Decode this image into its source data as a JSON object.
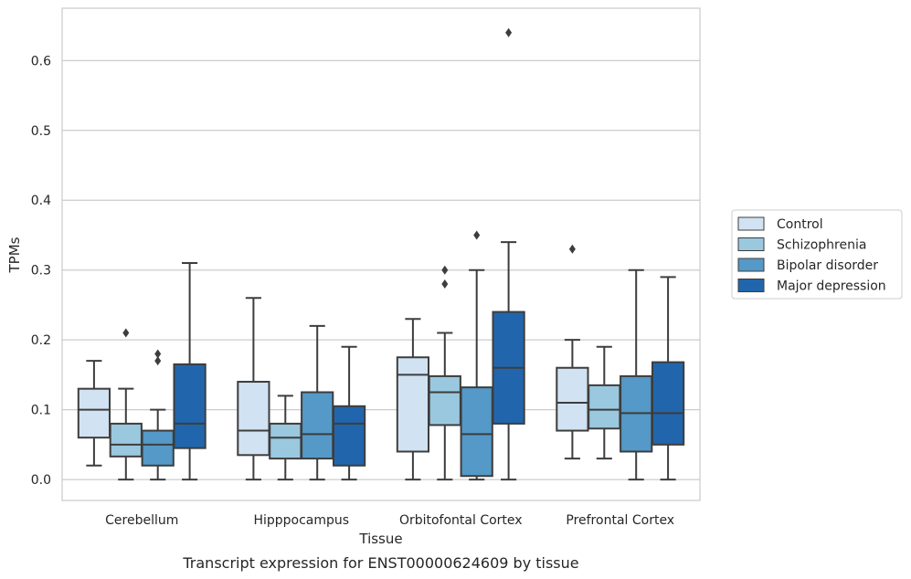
{
  "chart_data": {
    "type": "box",
    "xlabel": "Tissue",
    "ylabel": "TPMs",
    "caption": "Transcript expression for ENST00000624609 by tissue",
    "ylim": [
      -0.03,
      0.675
    ],
    "yticks": [
      "0.0",
      "0.1",
      "0.2",
      "0.3",
      "0.4",
      "0.5",
      "0.6"
    ],
    "grid": "horizontal",
    "legend_position": "right",
    "categories": [
      "Cerebellum",
      "Hipppocampus",
      "Orbitofontal Cortex",
      "Prefrontal Cortex"
    ],
    "series": [
      {
        "name": "Control",
        "color": "#d1e2f2",
        "boxes": [
          {
            "whislo": 0.02,
            "q1": 0.06,
            "med": 0.1,
            "q3": 0.13,
            "whishi": 0.17,
            "fliers": []
          },
          {
            "whislo": 0.0,
            "q1": 0.035,
            "med": 0.07,
            "q3": 0.14,
            "whishi": 0.26,
            "fliers": []
          },
          {
            "whislo": 0.0,
            "q1": 0.04,
            "med": 0.15,
            "q3": 0.175,
            "whishi": 0.23,
            "fliers": []
          },
          {
            "whislo": 0.03,
            "q1": 0.07,
            "med": 0.11,
            "q3": 0.16,
            "whishi": 0.2,
            "fliers": [
              0.33
            ]
          }
        ]
      },
      {
        "name": "Schizophrenia",
        "color": "#9ac8df",
        "boxes": [
          {
            "whislo": 0.0,
            "q1": 0.033,
            "med": 0.05,
            "q3": 0.08,
            "whishi": 0.13,
            "fliers": [
              0.21
            ]
          },
          {
            "whislo": 0.0,
            "q1": 0.03,
            "med": 0.06,
            "q3": 0.08,
            "whishi": 0.12,
            "fliers": []
          },
          {
            "whislo": 0.0,
            "q1": 0.078,
            "med": 0.125,
            "q3": 0.148,
            "whishi": 0.21,
            "fliers": [
              0.28,
              0.3
            ]
          },
          {
            "whislo": 0.03,
            "q1": 0.073,
            "med": 0.1,
            "q3": 0.135,
            "whishi": 0.19,
            "fliers": []
          }
        ]
      },
      {
        "name": "Bipolar disorder",
        "color": "#5499c7",
        "boxes": [
          {
            "whislo": 0.0,
            "q1": 0.02,
            "med": 0.05,
            "q3": 0.07,
            "whishi": 0.1,
            "fliers": [
              0.17,
              0.18
            ]
          },
          {
            "whislo": 0.0,
            "q1": 0.03,
            "med": 0.065,
            "q3": 0.125,
            "whishi": 0.22,
            "fliers": []
          },
          {
            "whislo": 0.0,
            "q1": 0.005,
            "med": 0.065,
            "q3": 0.132,
            "whishi": 0.3,
            "fliers": [
              0.35
            ]
          },
          {
            "whislo": 0.0,
            "q1": 0.04,
            "med": 0.095,
            "q3": 0.148,
            "whishi": 0.3,
            "fliers": []
          }
        ]
      },
      {
        "name": "Major depression",
        "color": "#2166ac",
        "boxes": [
          {
            "whislo": 0.0,
            "q1": 0.045,
            "med": 0.08,
            "q3": 0.165,
            "whishi": 0.31,
            "fliers": []
          },
          {
            "whislo": 0.0,
            "q1": 0.02,
            "med": 0.08,
            "q3": 0.105,
            "whishi": 0.19,
            "fliers": []
          },
          {
            "whislo": 0.0,
            "q1": 0.08,
            "med": 0.16,
            "q3": 0.24,
            "whishi": 0.34,
            "fliers": [
              0.64
            ]
          },
          {
            "whislo": 0.0,
            "q1": 0.05,
            "med": 0.095,
            "q3": 0.168,
            "whishi": 0.29,
            "fliers": []
          }
        ]
      }
    ]
  }
}
